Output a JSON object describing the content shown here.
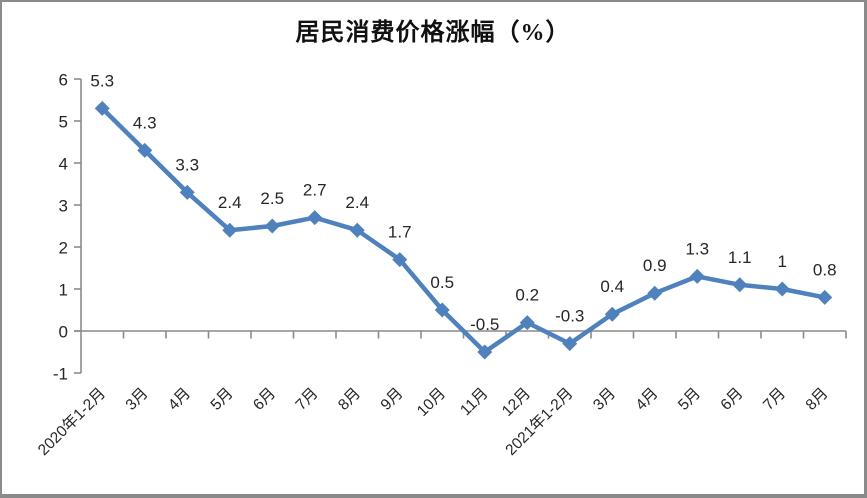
{
  "title": "居民消费价格涨幅（%）",
  "frame": {
    "background": "#ffffff",
    "border_color": "#8a8a8a"
  },
  "chart_data": {
    "type": "line",
    "title": "居民消费价格涨幅（%）",
    "categories": [
      "2020年1-2月",
      "3月",
      "4月",
      "5月",
      "6月",
      "7月",
      "8月",
      "9月",
      "10月",
      "11月",
      "12月",
      "2021年1-2月",
      "3月",
      "4月",
      "5月",
      "6月",
      "7月",
      "8月"
    ],
    "series": [
      {
        "name": "居民消费价格涨幅",
        "values": [
          5.3,
          4.3,
          3.3,
          2.4,
          2.5,
          2.7,
          2.4,
          1.7,
          0.5,
          -0.5,
          0.2,
          -0.3,
          0.4,
          0.9,
          1.3,
          1.1,
          1,
          0.8
        ],
        "point_labels": [
          "5.3",
          "4.3",
          "3.3",
          "2.4",
          "2.5",
          "2.7",
          "2.4",
          "1.7",
          "0.5",
          "-0.5",
          "0.2",
          "-0.3",
          "0.4",
          "0.9",
          "1.3",
          "1.1",
          "1",
          "0.8"
        ],
        "color": "#4F81BD",
        "marker": "diamond"
      }
    ],
    "xlabel": "",
    "ylabel": "",
    "ylim": [
      -1,
      6
    ],
    "yticks": [
      6,
      5,
      4,
      3,
      2,
      1,
      0,
      -1
    ],
    "x_label_rotation": -45,
    "grid": "none",
    "legend": "none",
    "axis_color": "#8a8a8a",
    "label_color": "#262626"
  }
}
